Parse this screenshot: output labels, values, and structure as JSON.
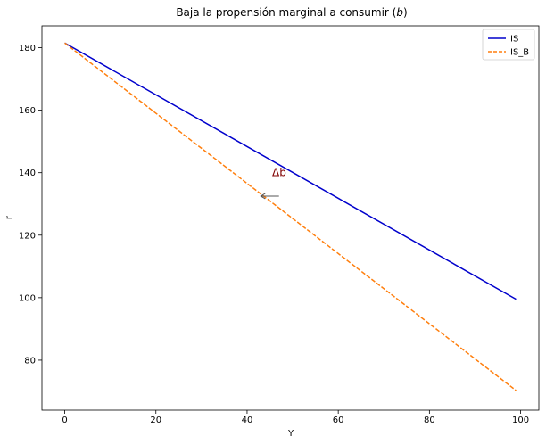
{
  "chart_data": {
    "type": "line",
    "title": "Baja la propensión marginal a consumir (b)",
    "title_parts": {
      "main": "Baja la propensión marginal a consumir (",
      "var": "b",
      "close": ")"
    },
    "xlabel": "Y",
    "ylabel": "r",
    "xlim": [
      -5,
      104
    ],
    "ylim": [
      64,
      187
    ],
    "xticks": [
      0,
      20,
      40,
      60,
      80,
      100
    ],
    "yticks": [
      80,
      100,
      120,
      140,
      160,
      180
    ],
    "grid": false,
    "legend_position": "top-right",
    "series": [
      {
        "name": "IS",
        "color": "#0000cc",
        "style": "solid",
        "x": [
          0,
          99
        ],
        "y": [
          181.5,
          99.5
        ]
      },
      {
        "name": "IS_B",
        "color": "#ff7f0e",
        "style": "dashed",
        "x": [
          0,
          99
        ],
        "y": [
          181.5,
          70.3
        ]
      }
    ],
    "annotations": [
      {
        "text": "Δb",
        "x": 45.5,
        "y": 140,
        "color": "#800000"
      },
      {
        "type": "arrow",
        "from": [
          47,
          132.5
        ],
        "to": [
          43,
          132.5
        ],
        "color": "#555555"
      }
    ]
  }
}
